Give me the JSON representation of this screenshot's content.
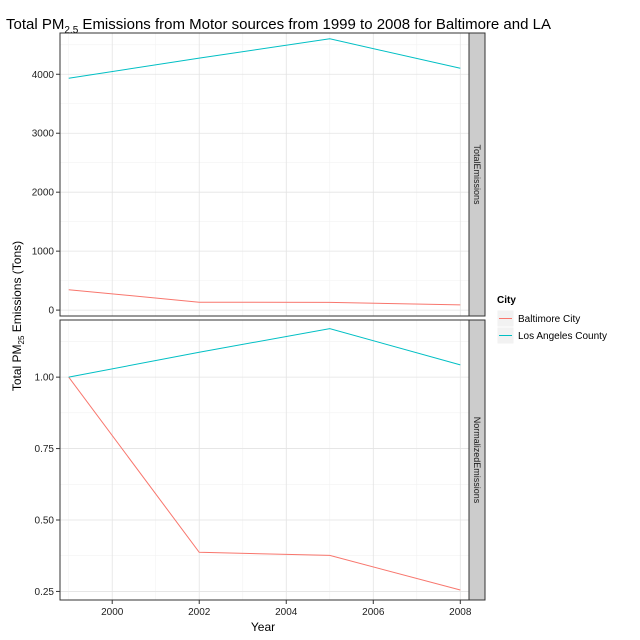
{
  "chart_data": {
    "type": "line",
    "title": {
      "prefix": "Total PM",
      "subscript": "2.5",
      "suffix": " Emissions from Motor sources from 1999 to 2008 for Baltimore and LA"
    },
    "xlabel": "Year",
    "ylabel": {
      "prefix": "Total PM",
      "subscript": "25",
      "suffix": " Emissions (Tons)"
    },
    "x": [
      1999,
      2002,
      2005,
      2008
    ],
    "xlim": [
      1998.8,
      2008.2
    ],
    "x_ticks": [
      2000,
      2002,
      2004,
      2006,
      2008
    ],
    "legend": {
      "title": "City",
      "placement": "right"
    },
    "grid": true,
    "series_colors": {
      "Baltimore City": "#f8766d",
      "Los Angeles County": "#00bfc4"
    },
    "panels": [
      {
        "strip": "TotalEmissions",
        "ylim": [
          -100,
          4700
        ],
        "y_ticks": [
          0,
          1000,
          2000,
          3000,
          4000
        ],
        "series": [
          {
            "name": "Baltimore City",
            "values": [
              346.8,
              134.3,
              130.4,
              88.3
            ]
          },
          {
            "name": "Los Angeles County",
            "values": [
              3931.1,
              4274.0,
              4601.4,
              4101.3
            ]
          }
        ]
      },
      {
        "strip": "NormalizedEmissions",
        "ylim": [
          0.22,
          1.2
        ],
        "y_ticks": [
          0.25,
          0.5,
          0.75,
          1.0
        ],
        "y_tick_labels": [
          "0.25",
          "0.50",
          "0.75",
          "1.00"
        ],
        "series": [
          {
            "name": "Baltimore City",
            "values": [
              1.0,
              0.387,
              0.376,
              0.255
            ]
          },
          {
            "name": "Los Angeles County",
            "values": [
              1.0,
              1.087,
              1.17,
              1.043
            ]
          }
        ]
      }
    ]
  }
}
